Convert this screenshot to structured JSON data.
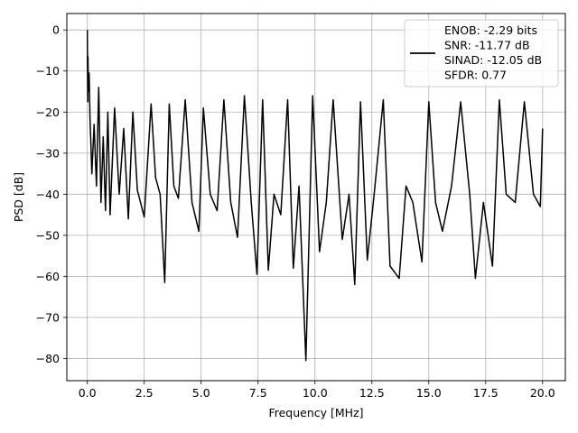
{
  "chart_data": {
    "type": "line",
    "xlabel": "Frequency [MHz]",
    "ylabel": "PSD [dB]",
    "xlim": [
      -0.9,
      21.0
    ],
    "ylim": [
      -85.4,
      4.0
    ],
    "xticks": [
      0.0,
      2.5,
      5.0,
      7.5,
      10.0,
      12.5,
      15.0,
      17.5,
      20.0
    ],
    "xtick_labels": [
      "0.0",
      "2.5",
      "5.0",
      "7.5",
      "10.0",
      "12.5",
      "15.0",
      "17.5",
      "20.0"
    ],
    "yticks": [
      0,
      -10,
      -20,
      -30,
      -40,
      -50,
      -60,
      -70,
      -80
    ],
    "ytick_labels": [
      "0",
      "−10",
      "−20",
      "−30",
      "−40",
      "−50",
      "−60",
      "−70",
      "−80"
    ],
    "grid": true,
    "legend_position": "top-right",
    "series_color": "#000000",
    "legend": {
      "lines": [
        "ENOB: -2.29 bits",
        "SNR: -11.77 dB",
        "SINAD: -12.05 dB",
        "SFDR: 0.77"
      ]
    },
    "series": [
      {
        "points": [
          [
            0.0,
            0.0
          ],
          [
            0.01,
            -9.0
          ],
          [
            0.02,
            -17.5
          ],
          [
            0.03,
            -6.5
          ],
          [
            0.05,
            -15.0
          ],
          [
            0.08,
            -10.5
          ],
          [
            0.12,
            -22.0
          ],
          [
            0.16,
            -28.0
          ],
          [
            0.2,
            -35.0
          ],
          [
            0.3,
            -23.0
          ],
          [
            0.4,
            -38.0
          ],
          [
            0.5,
            -14.0
          ],
          [
            0.6,
            -42.0
          ],
          [
            0.7,
            -26.0
          ],
          [
            0.8,
            -44.0
          ],
          [
            0.9,
            -20.0
          ],
          [
            1.0,
            -45.0
          ],
          [
            1.2,
            -19.0
          ],
          [
            1.4,
            -40.0
          ],
          [
            1.6,
            -24.0
          ],
          [
            1.8,
            -46.0
          ],
          [
            2.0,
            -20.0
          ],
          [
            2.2,
            -39.0
          ],
          [
            2.5,
            -45.5
          ],
          [
            2.8,
            -18.0
          ],
          [
            3.0,
            -36.0
          ],
          [
            3.2,
            -40.0
          ],
          [
            3.4,
            -61.5
          ],
          [
            3.6,
            -18.0
          ],
          [
            3.8,
            -38.0
          ],
          [
            4.0,
            -41.0
          ],
          [
            4.3,
            -17.0
          ],
          [
            4.6,
            -42.0
          ],
          [
            4.9,
            -49.0
          ],
          [
            5.1,
            -19.0
          ],
          [
            5.4,
            -40.0
          ],
          [
            5.7,
            -44.0
          ],
          [
            6.0,
            -17.0
          ],
          [
            6.3,
            -42.0
          ],
          [
            6.6,
            -50.5
          ],
          [
            6.9,
            -16.0
          ],
          [
            7.2,
            -42.0
          ],
          [
            7.45,
            -59.5
          ],
          [
            7.7,
            -17.0
          ],
          [
            7.95,
            -58.5
          ],
          [
            8.2,
            -40.0
          ],
          [
            8.5,
            -45.0
          ],
          [
            8.8,
            -17.0
          ],
          [
            9.05,
            -58.0
          ],
          [
            9.3,
            -38.0
          ],
          [
            9.6,
            -80.5
          ],
          [
            9.9,
            -16.0
          ],
          [
            10.2,
            -54.0
          ],
          [
            10.5,
            -42.0
          ],
          [
            10.8,
            -17.0
          ],
          [
            11.2,
            -51.0
          ],
          [
            11.5,
            -40.0
          ],
          [
            11.75,
            -62.0
          ],
          [
            12.0,
            -17.5
          ],
          [
            12.3,
            -56.0
          ],
          [
            12.6,
            -40.0
          ],
          [
            13.0,
            -17.0
          ],
          [
            13.3,
            -57.5
          ],
          [
            13.7,
            -60.5
          ],
          [
            14.0,
            -38.0
          ],
          [
            14.3,
            -42.0
          ],
          [
            14.7,
            -56.5
          ],
          [
            15.0,
            -17.5
          ],
          [
            15.3,
            -42.0
          ],
          [
            15.6,
            -49.0
          ],
          [
            16.0,
            -38.0
          ],
          [
            16.4,
            -17.5
          ],
          [
            16.8,
            -40.0
          ],
          [
            17.05,
            -60.5
          ],
          [
            17.4,
            -42.0
          ],
          [
            17.8,
            -57.5
          ],
          [
            18.1,
            -17.0
          ],
          [
            18.4,
            -40.0
          ],
          [
            18.8,
            -42.0
          ],
          [
            19.2,
            -17.5
          ],
          [
            19.6,
            -40.0
          ],
          [
            19.9,
            -43.0
          ],
          [
            20.0,
            -24.0
          ]
        ]
      }
    ]
  }
}
